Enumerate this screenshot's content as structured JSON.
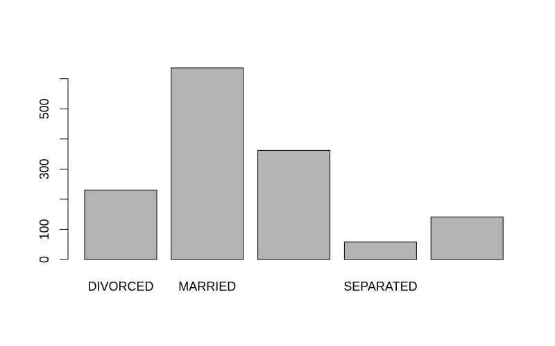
{
  "chart_data": {
    "type": "bar",
    "categories": [
      "DIVORCED",
      "MARRIED",
      "",
      "SEPARATED",
      ""
    ],
    "values": [
      230,
      636,
      362,
      58,
      141
    ],
    "title": "",
    "xlabel": "",
    "ylabel": "",
    "ylim": [
      0,
      636
    ],
    "yticks": [
      0,
      100,
      200,
      300,
      400,
      500,
      600
    ],
    "ytick_labels": [
      "0",
      "100",
      "",
      "300",
      "",
      "500",
      ""
    ],
    "bar_color": "#b3b3b3",
    "grid": false
  }
}
